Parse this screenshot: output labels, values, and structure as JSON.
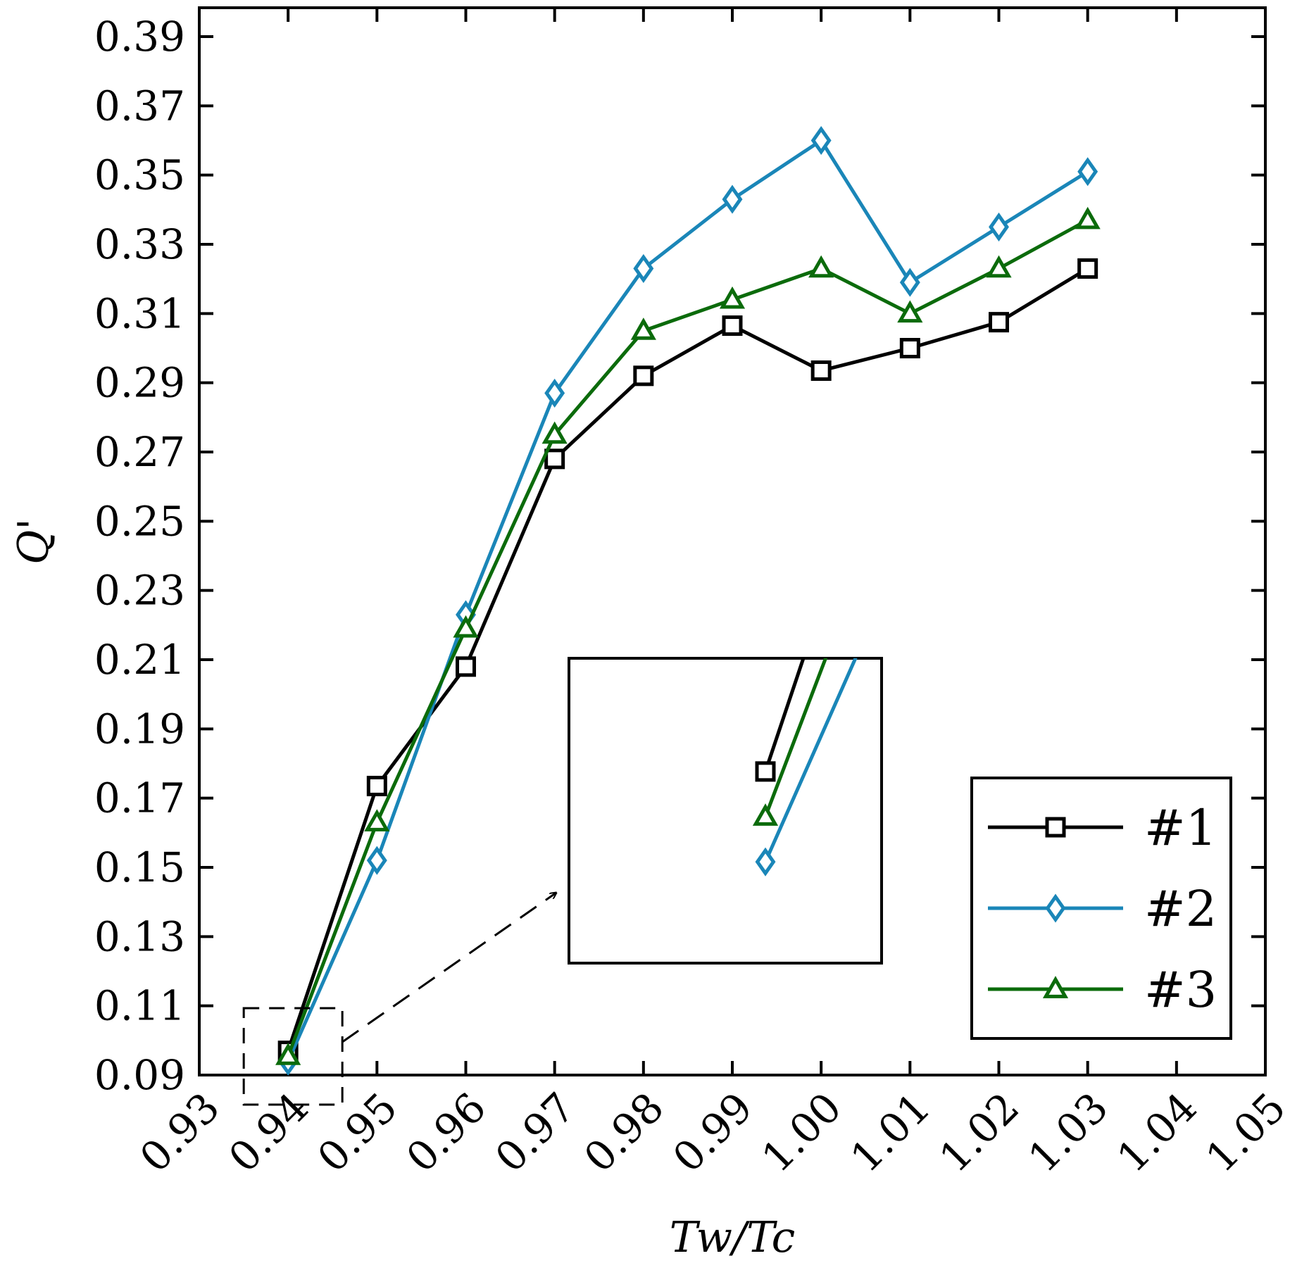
{
  "chart_data": {
    "type": "line",
    "xlabel": "Tw/Tc",
    "ylabel": "Q'",
    "xlim": [
      0.93,
      1.05
    ],
    "ylim": [
      0.09,
      0.4
    ],
    "xticks": [
      "0.93",
      "0.94",
      "0.95",
      "0.96",
      "0.97",
      "0.98",
      "0.99",
      "1.00",
      "1.01",
      "1.02",
      "1.03",
      "1.04",
      "1.05"
    ],
    "yticks": [
      "0.09",
      "0.11",
      "0.13",
      "0.15",
      "0.17",
      "0.19",
      "0.21",
      "0.23",
      "0.25",
      "0.27",
      "0.29",
      "0.31",
      "0.33",
      "0.35",
      "0.37",
      "0.39"
    ],
    "x": [
      0.94,
      0.95,
      0.96,
      0.97,
      0.98,
      0.99,
      1.0,
      1.01,
      1.02,
      1.03
    ],
    "series": [
      {
        "name": "#1",
        "color": "#000000",
        "marker": "square",
        "values": [
          0.097,
          0.1735,
          0.208,
          0.268,
          0.292,
          0.3065,
          0.2935,
          0.3,
          0.3075,
          0.323
        ]
      },
      {
        "name": "#2",
        "color": "#1a86b8",
        "marker": "diamond",
        "values": [
          0.094,
          0.152,
          0.223,
          0.287,
          0.323,
          0.343,
          0.36,
          0.319,
          0.335,
          0.351
        ]
      },
      {
        "name": "#3",
        "color": "#0b6b0b",
        "marker": "triangle",
        "values": [
          0.0955,
          0.163,
          0.219,
          0.275,
          0.305,
          0.314,
          0.323,
          0.31,
          0.323,
          0.337
        ]
      }
    ],
    "legend_position": "bottom-right",
    "inset": "zoom of the first data point at Tw/Tc = 0.94",
    "grid": false
  }
}
